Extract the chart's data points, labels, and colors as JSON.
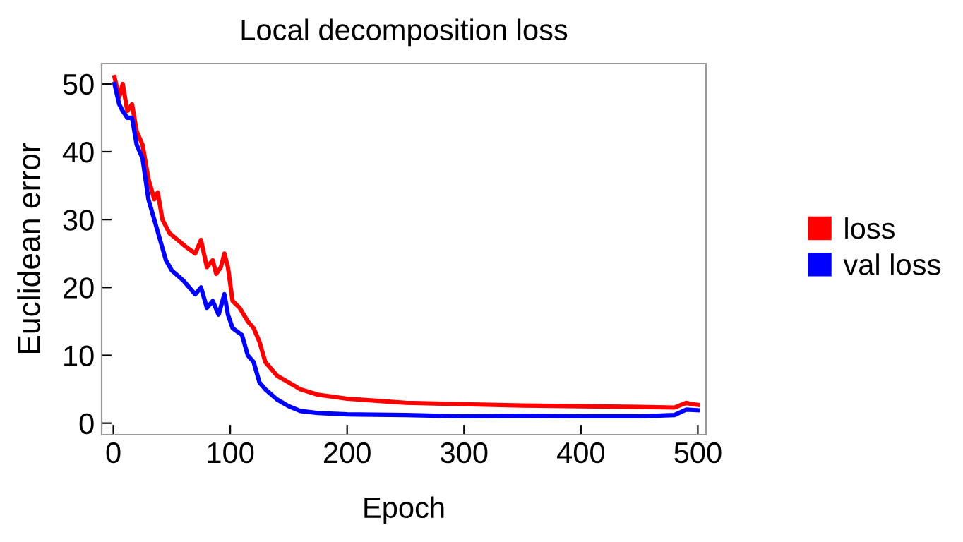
{
  "chart_data": {
    "type": "line",
    "title": "Local decomposition loss",
    "xlabel": "Epoch",
    "ylabel": "Euclidean error",
    "xlim": [
      -10,
      507
    ],
    "ylim": [
      -1.7,
      53
    ],
    "xticks": [
      0,
      100,
      200,
      300,
      400,
      500
    ],
    "yticks": [
      0,
      10,
      20,
      30,
      40,
      50
    ],
    "grid": false,
    "legend": "right",
    "series": [
      {
        "name": "loss",
        "color": "#ff0000",
        "x": [
          1,
          5,
          8,
          12,
          16,
          20,
          25,
          30,
          35,
          38,
          42,
          48,
          55,
          62,
          70,
          75,
          80,
          85,
          88,
          92,
          95,
          98,
          102,
          108,
          115,
          120,
          125,
          130,
          140,
          150,
          160,
          175,
          200,
          250,
          300,
          350,
          400,
          450,
          480,
          490,
          495,
          500
        ],
        "values": [
          51,
          48,
          50,
          46,
          47,
          43,
          41,
          36,
          33,
          34,
          30,
          28,
          27,
          26,
          25,
          27,
          23,
          24,
          22,
          23,
          25,
          23,
          18,
          17,
          15,
          14,
          12,
          9,
          7,
          6,
          5,
          4.2,
          3.6,
          3,
          2.8,
          2.6,
          2.5,
          2.4,
          2.3,
          3.0,
          2.8,
          2.7
        ]
      },
      {
        "name": "val loss",
        "color": "#0000ff",
        "x": [
          1,
          5,
          8,
          12,
          16,
          20,
          25,
          30,
          35,
          40,
          45,
          50,
          60,
          70,
          75,
          80,
          85,
          90,
          95,
          98,
          102,
          110,
          115,
          120,
          125,
          130,
          140,
          150,
          160,
          175,
          200,
          250,
          300,
          350,
          400,
          450,
          480,
          490,
          500
        ],
        "values": [
          50,
          47,
          46,
          45,
          45,
          41,
          39,
          33,
          30,
          27,
          24,
          22.5,
          21,
          19,
          20,
          17,
          18,
          16,
          19,
          16,
          14,
          13,
          10,
          9,
          6,
          5,
          3.5,
          2.5,
          1.8,
          1.5,
          1.3,
          1.2,
          1.0,
          1.1,
          1.0,
          1.0,
          1.2,
          2.0,
          1.9
        ]
      }
    ]
  }
}
